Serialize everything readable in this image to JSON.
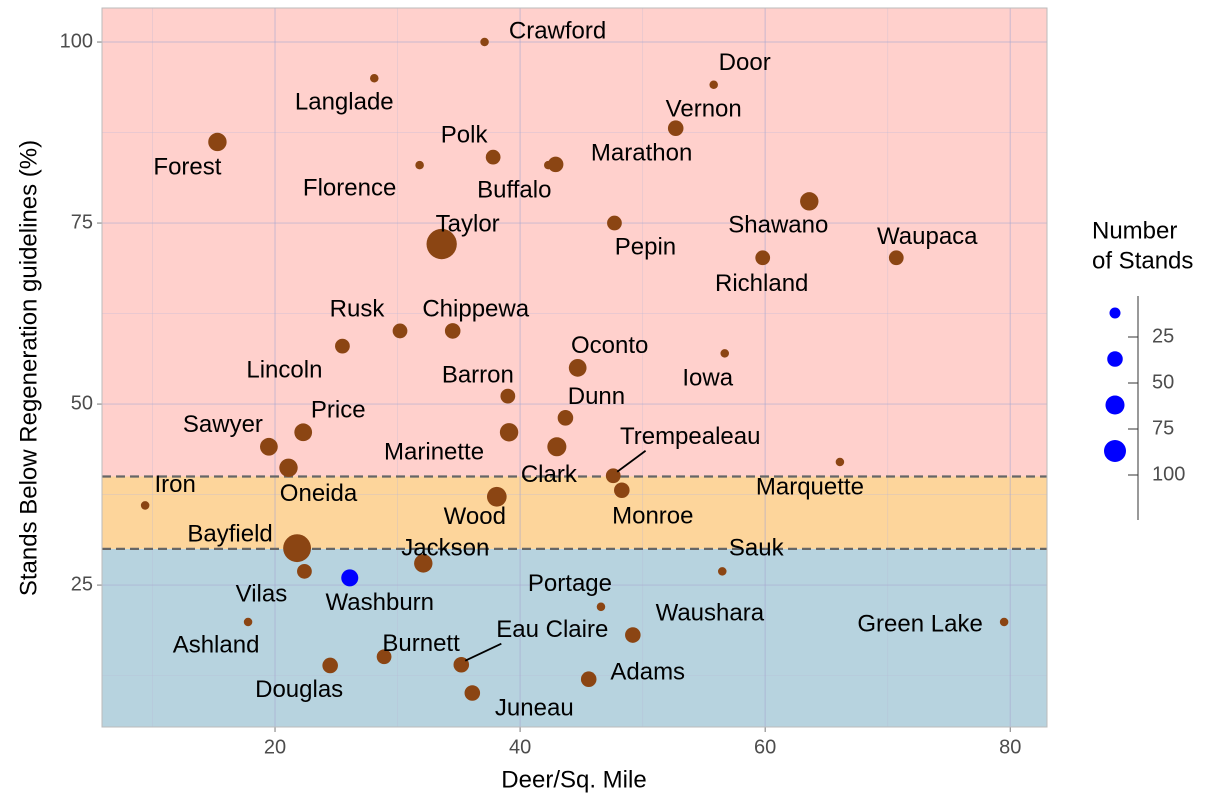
{
  "chart_data": {
    "type": "scatter",
    "x_label": "Deer/Sq. Mile",
    "y_label": "Stands Below Regeneration guidelines (%)",
    "labels": [
      "Crawford",
      "Door",
      "Langlade",
      "Vernon",
      "Forest",
      "Polk",
      "Florence",
      "Buffalo",
      "Marathon",
      "Taylor",
      "Pepin",
      "Shawano",
      "Richland",
      "Waupaca",
      "Rusk",
      "Chippewa",
      "Lincoln",
      "Oconto",
      "Iowa",
      "Barron",
      "Dunn",
      "Price",
      "Sawyer",
      "Marinette",
      "Clark",
      "Oneida",
      "Trempealeau",
      "Monroe",
      "Marquette",
      "Iron",
      "Wood",
      "Bayfield",
      "Jackson",
      "Sauk",
      "Vilas",
      "Ashland",
      "Washburn",
      "Douglas",
      "Portage",
      "Waushara",
      "Green Lake",
      "Burnett",
      "Eau Claire",
      "Juneau",
      "Adams"
    ],
    "x": [
      37.1,
      55.8,
      28.1,
      52.7,
      15.3,
      37.8,
      31.8,
      42.3,
      42.9,
      33.6,
      47.7,
      63.6,
      59.8,
      70.7,
      30.2,
      34.5,
      25.5,
      44.7,
      56.7,
      39.0,
      43.7,
      22.3,
      19.5,
      39.1,
      43.0,
      21.1,
      47.6,
      48.3,
      66.1,
      9.4,
      38.1,
      21.8,
      32.1,
      56.5,
      22.4,
      17.8,
      26.1,
      24.5,
      46.6,
      49.2,
      79.5,
      28.9,
      35.2,
      36.1,
      45.6
    ],
    "y": [
      100,
      94.1,
      95.0,
      88.1,
      86.2,
      84.1,
      83.0,
      83.0,
      83.1,
      72.1,
      75.0,
      78.0,
      70.2,
      70.2,
      60.1,
      60.1,
      58.0,
      55.0,
      57.0,
      51.1,
      48.1,
      46.1,
      44.1,
      46.1,
      44.1,
      41.2,
      40.1,
      38.1,
      42.0,
      36.0,
      37.2,
      30.1,
      28.0,
      26.9,
      26.9,
      19.9,
      26.0,
      13.9,
      22.0,
      18.1,
      19.9,
      15.1,
      14.0,
      10.1,
      12.0
    ],
    "size": [
      15,
      15,
      15,
      50,
      70,
      45,
      15,
      15,
      50,
      190,
      45,
      70,
      45,
      45,
      45,
      50,
      45,
      65,
      15,
      45,
      50,
      65,
      65,
      70,
      75,
      70,
      45,
      50,
      15,
      15,
      80,
      160,
      70,
      15,
      45,
      15,
      60,
      50,
      15,
      50,
      15,
      45,
      50,
      50,
      50
    ],
    "colors": [
      "#8b4513",
      "#8b4513",
      "#8b4513",
      "#8b4513",
      "#8b4513",
      "#8b4513",
      "#8b4513",
      "#8b4513",
      "#8b4513",
      "#8b4513",
      "#8b4513",
      "#8b4513",
      "#8b4513",
      "#8b4513",
      "#8b4513",
      "#8b4513",
      "#8b4513",
      "#8b4513",
      "#8b4513",
      "#8b4513",
      "#8b4513",
      "#8b4513",
      "#8b4513",
      "#8b4513",
      "#8b4513",
      "#8b4513",
      "#8b4513",
      "#8b4513",
      "#8b4513",
      "#8b4513",
      "#8b4513",
      "#8b4513",
      "#8b4513",
      "#8b4513",
      "#8b4513",
      "#8b4513",
      "#0000ff",
      "#8b4513",
      "#8b4513",
      "#8b4513",
      "#8b4513",
      "#8b4513",
      "#8b4513",
      "#8b4513",
      "#8b4513"
    ],
    "xlim": [
      5.88,
      83.0
    ],
    "ylim": [
      5.4,
      104.7
    ],
    "xticks": [
      20,
      40,
      60,
      80
    ],
    "yticks": [
      25,
      50,
      75,
      100
    ],
    "xminor": [
      10,
      30,
      50,
      70
    ],
    "yminor": [
      12.5,
      37.5,
      62.5,
      87.5
    ],
    "grid": true,
    "bands": [
      {
        "from": 5.4,
        "to": 30,
        "color": "#b7d3df"
      },
      {
        "from": 30,
        "to": 40,
        "color": "#fdd59b"
      },
      {
        "from": 40,
        "to": 104.7,
        "color": "#ffd0cc"
      }
    ],
    "hlines": [
      30,
      40
    ],
    "size_legend": {
      "title_lines": [
        "Number",
        "of Stands"
      ],
      "breaks": [
        25,
        50,
        75,
        100
      ],
      "color": "#0000ff"
    }
  }
}
